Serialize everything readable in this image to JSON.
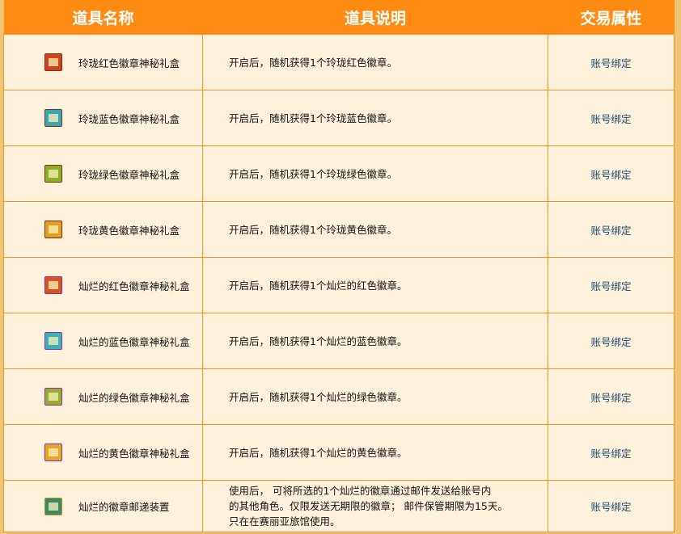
{
  "header": {
    "name": "道具名称",
    "desc": "道具说明",
    "trade": "交易属性"
  },
  "rows": [
    {
      "icon": "red-giftbox-icon",
      "color": "#d0441c",
      "border": "#8a2a10",
      "name": "玲珑红色徽章神秘礼盒",
      "desc": "开启后，随机获得1个玲珑红色徽章。",
      "trade": "账号绑定"
    },
    {
      "icon": "blue-giftbox-icon",
      "color": "#3aa7b0",
      "border": "#8a2a10",
      "name": "玲珑蓝色徽章神秘礼盒",
      "desc": "开启后，随机获得1个玲珑蓝色徽章。",
      "trade": "账号绑定"
    },
    {
      "icon": "green-giftbox-icon",
      "color": "#8ab02a",
      "border": "#8a2a10",
      "name": "玲珑绿色徽章神秘礼盒",
      "desc": "开启后，随机获得1个玲珑绿色徽章。",
      "trade": "账号绑定"
    },
    {
      "icon": "yellow-giftbox-icon",
      "color": "#e0a020",
      "border": "#8a2a10",
      "name": "玲珑黄色徽章神秘礼盒",
      "desc": "开启后，随机获得1个玲珑黄色徽章。",
      "trade": "账号绑定"
    },
    {
      "icon": "red-giftbox-icon",
      "color": "#d05a1c",
      "border": "#b020a0",
      "name": "灿烂的红色徽章神秘礼盒",
      "desc": "开启后，随机获得1个灿烂的红色徽章。",
      "trade": "账号绑定"
    },
    {
      "icon": "blue-giftbox-icon",
      "color": "#3ab0b8",
      "border": "#b020a0",
      "name": "灿烂的蓝色徽章神秘礼盒",
      "desc": "开启后，随机获得1个灿烂的蓝色徽章。",
      "trade": "账号绑定"
    },
    {
      "icon": "green-giftbox-icon",
      "color": "#90b030",
      "border": "#b020a0",
      "name": "灿烂的绿色徽章神秘礼盒",
      "desc": "开启后，随机获得1个灿烂的绿色徽章。",
      "trade": "账号绑定"
    },
    {
      "icon": "yellow-giftbox-icon",
      "color": "#e0a828",
      "border": "#b020a0",
      "name": "灿烂的黄色徽章神秘礼盒",
      "desc": "开启后，随机获得1个灿烂的黄色徽章。",
      "trade": "账号绑定"
    },
    {
      "icon": "badge-mail-device-icon",
      "color": "#3a8a6a",
      "border": "#c09020",
      "name": "灿烂的徽章邮递装置",
      "desc_lines": [
        "使用后， 可将所选的1个灿烂的徽章通过邮件发送给账号内",
        "的其他角色。仅限发送无期限的徽章； 邮件保管期限为15天。",
        "只在在赛丽亚旅馆使用。"
      ],
      "trade": "账号绑定"
    }
  ]
}
